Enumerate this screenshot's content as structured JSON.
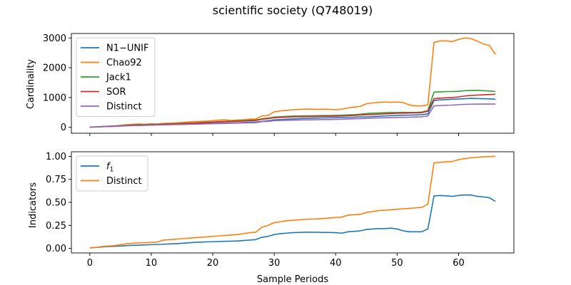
{
  "title": "scientific society (Q748019)",
  "chart_data": [
    {
      "type": "line",
      "ylabel": "Cardinality",
      "xlabel": "",
      "xlim": [
        -3,
        69
      ],
      "ylim": [
        -200,
        3150
      ],
      "xticks": [
        0,
        10,
        20,
        30,
        40,
        50,
        60
      ],
      "xtick_labels": [
        "0",
        "10",
        "20",
        "30",
        "40",
        "50",
        "60"
      ],
      "show_xtick_labels": false,
      "yticks": [
        0,
        1000,
        2000,
        3000
      ],
      "ytick_labels": [
        "0",
        "1000",
        "2000",
        "3000"
      ],
      "legend": "upper-left",
      "x": [
        0,
        1,
        2,
        3,
        4,
        5,
        6,
        7,
        8,
        9,
        10,
        11,
        12,
        13,
        14,
        15,
        16,
        17,
        18,
        19,
        20,
        21,
        22,
        23,
        24,
        25,
        26,
        27,
        28,
        29,
        30,
        31,
        32,
        33,
        34,
        35,
        36,
        37,
        38,
        39,
        40,
        41,
        42,
        43,
        44,
        45,
        46,
        47,
        48,
        49,
        50,
        51,
        52,
        53,
        54,
        55,
        56,
        57,
        58,
        59,
        60,
        61,
        62,
        63,
        64,
        65,
        66
      ],
      "series": [
        {
          "name": "N1−UNIF",
          "color": "#1f77b4",
          "values": [
            5,
            10,
            20,
            30,
            35,
            45,
            55,
            60,
            65,
            70,
            75,
            80,
            85,
            90,
            95,
            100,
            110,
            115,
            120,
            125,
            130,
            135,
            140,
            145,
            150,
            160,
            170,
            175,
            200,
            220,
            250,
            260,
            270,
            280,
            290,
            300,
            305,
            310,
            315,
            320,
            325,
            330,
            335,
            340,
            345,
            350,
            360,
            370,
            380,
            390,
            400,
            405,
            410,
            415,
            420,
            450,
            900,
            920,
            930,
            940,
            950,
            960,
            970,
            965,
            960,
            955,
            940
          ]
        },
        {
          "name": "Chao92",
          "color": "#ff7f0e",
          "values": [
            10,
            15,
            25,
            35,
            45,
            65,
            85,
            100,
            110,
            100,
            115,
            110,
            130,
            140,
            150,
            160,
            180,
            195,
            200,
            210,
            225,
            240,
            250,
            230,
            245,
            255,
            270,
            280,
            380,
            400,
            520,
            550,
            570,
            590,
            600,
            610,
            610,
            600,
            610,
            600,
            590,
            610,
            650,
            680,
            700,
            790,
            820,
            840,
            850,
            840,
            850,
            830,
            750,
            720,
            720,
            750,
            2850,
            2900,
            2900,
            2880,
            2950,
            3000,
            2980,
            2900,
            2800,
            2750,
            2450
          ]
        },
        {
          "name": "Jack1",
          "color": "#2ca02c",
          "values": [
            5,
            15,
            25,
            35,
            40,
            55,
            70,
            80,
            85,
            90,
            95,
            100,
            110,
            115,
            120,
            130,
            140,
            150,
            160,
            170,
            180,
            190,
            200,
            205,
            215,
            225,
            235,
            245,
            285,
            310,
            340,
            355,
            365,
            375,
            380,
            385,
            385,
            390,
            395,
            395,
            400,
            405,
            415,
            425,
            440,
            460,
            475,
            480,
            490,
            495,
            495,
            500,
            500,
            500,
            510,
            560,
            1180,
            1190,
            1200,
            1200,
            1210,
            1230,
            1240,
            1240,
            1230,
            1220,
            1200
          ]
        },
        {
          "name": "SOR",
          "color": "#d62728",
          "values": [
            5,
            12,
            22,
            32,
            38,
            50,
            62,
            70,
            75,
            80,
            85,
            90,
            100,
            105,
            110,
            120,
            130,
            140,
            150,
            160,
            170,
            178,
            186,
            192,
            200,
            210,
            220,
            228,
            270,
            290,
            320,
            330,
            340,
            350,
            355,
            360,
            360,
            365,
            370,
            370,
            375,
            380,
            390,
            400,
            410,
            420,
            430,
            440,
            450,
            460,
            470,
            475,
            480,
            485,
            490,
            540,
            960,
            980,
            990,
            1000,
            1020,
            1050,
            1070,
            1080,
            1090,
            1100,
            1110
          ]
        },
        {
          "name": "Distinct",
          "color": "#9467bd",
          "values": [
            5,
            10,
            20,
            25,
            30,
            40,
            50,
            55,
            60,
            65,
            70,
            75,
            80,
            85,
            90,
            95,
            100,
            105,
            110,
            115,
            120,
            125,
            130,
            135,
            140,
            145,
            150,
            155,
            190,
            200,
            220,
            230,
            235,
            240,
            245,
            250,
            250,
            255,
            260,
            260,
            265,
            270,
            280,
            285,
            290,
            300,
            310,
            315,
            320,
            325,
            330,
            335,
            340,
            345,
            350,
            380,
            720,
            730,
            740,
            745,
            760,
            770,
            775,
            780,
            780,
            780,
            780
          ]
        }
      ]
    },
    {
      "type": "line",
      "ylabel": "Indicators",
      "xlabel": "Sample Periods",
      "xlim": [
        -3,
        69
      ],
      "ylim": [
        -0.05,
        1.05
      ],
      "xticks": [
        0,
        10,
        20,
        30,
        40,
        50,
        60
      ],
      "xtick_labels": [
        "0",
        "10",
        "20",
        "30",
        "40",
        "50",
        "60"
      ],
      "show_xtick_labels": true,
      "yticks": [
        0,
        0.25,
        0.5,
        0.75,
        1
      ],
      "ytick_labels": [
        "0.00",
        "0.25",
        "0.50",
        "0.75",
        "1.00"
      ],
      "legend": "upper-left",
      "x": [
        0,
        1,
        2,
        3,
        4,
        5,
        6,
        7,
        8,
        9,
        10,
        11,
        12,
        13,
        14,
        15,
        16,
        17,
        18,
        19,
        20,
        21,
        22,
        23,
        24,
        25,
        26,
        27,
        28,
        29,
        30,
        31,
        32,
        33,
        34,
        35,
        36,
        37,
        38,
        39,
        40,
        41,
        42,
        43,
        44,
        45,
        46,
        47,
        48,
        49,
        50,
        51,
        52,
        53,
        54,
        55,
        56,
        57,
        58,
        59,
        60,
        61,
        62,
        63,
        64,
        65,
        66
      ],
      "series": [
        {
          "name": "f",
          "name_sub": "1",
          "color": "#1f77b4",
          "values": [
            0.005,
            0.01,
            0.015,
            0.02,
            0.022,
            0.025,
            0.03,
            0.033,
            0.035,
            0.038,
            0.04,
            0.042,
            0.045,
            0.048,
            0.05,
            0.055,
            0.06,
            0.065,
            0.068,
            0.07,
            0.072,
            0.074,
            0.076,
            0.078,
            0.08,
            0.085,
            0.09,
            0.095,
            0.12,
            0.13,
            0.15,
            0.16,
            0.165,
            0.17,
            0.172,
            0.175,
            0.175,
            0.175,
            0.172,
            0.172,
            0.17,
            0.165,
            0.18,
            0.185,
            0.19,
            0.205,
            0.21,
            0.215,
            0.215,
            0.22,
            0.21,
            0.19,
            0.18,
            0.18,
            0.18,
            0.21,
            0.57,
            0.575,
            0.57,
            0.565,
            0.575,
            0.58,
            0.58,
            0.565,
            0.56,
            0.55,
            0.51
          ]
        },
        {
          "name": "Distinct",
          "color": "#ff7f0e",
          "values": [
            0.005,
            0.01,
            0.02,
            0.025,
            0.03,
            0.04,
            0.05,
            0.055,
            0.06,
            0.062,
            0.065,
            0.068,
            0.09,
            0.095,
            0.1,
            0.105,
            0.11,
            0.115,
            0.12,
            0.125,
            0.13,
            0.135,
            0.14,
            0.145,
            0.15,
            0.16,
            0.17,
            0.175,
            0.23,
            0.25,
            0.28,
            0.29,
            0.3,
            0.305,
            0.31,
            0.315,
            0.318,
            0.32,
            0.325,
            0.33,
            0.335,
            0.34,
            0.36,
            0.365,
            0.37,
            0.39,
            0.4,
            0.41,
            0.415,
            0.42,
            0.425,
            0.43,
            0.435,
            0.44,
            0.445,
            0.48,
            0.93,
            0.935,
            0.94,
            0.945,
            0.965,
            0.975,
            0.985,
            0.99,
            0.995,
            0.998,
            1.0
          ]
        }
      ]
    }
  ]
}
